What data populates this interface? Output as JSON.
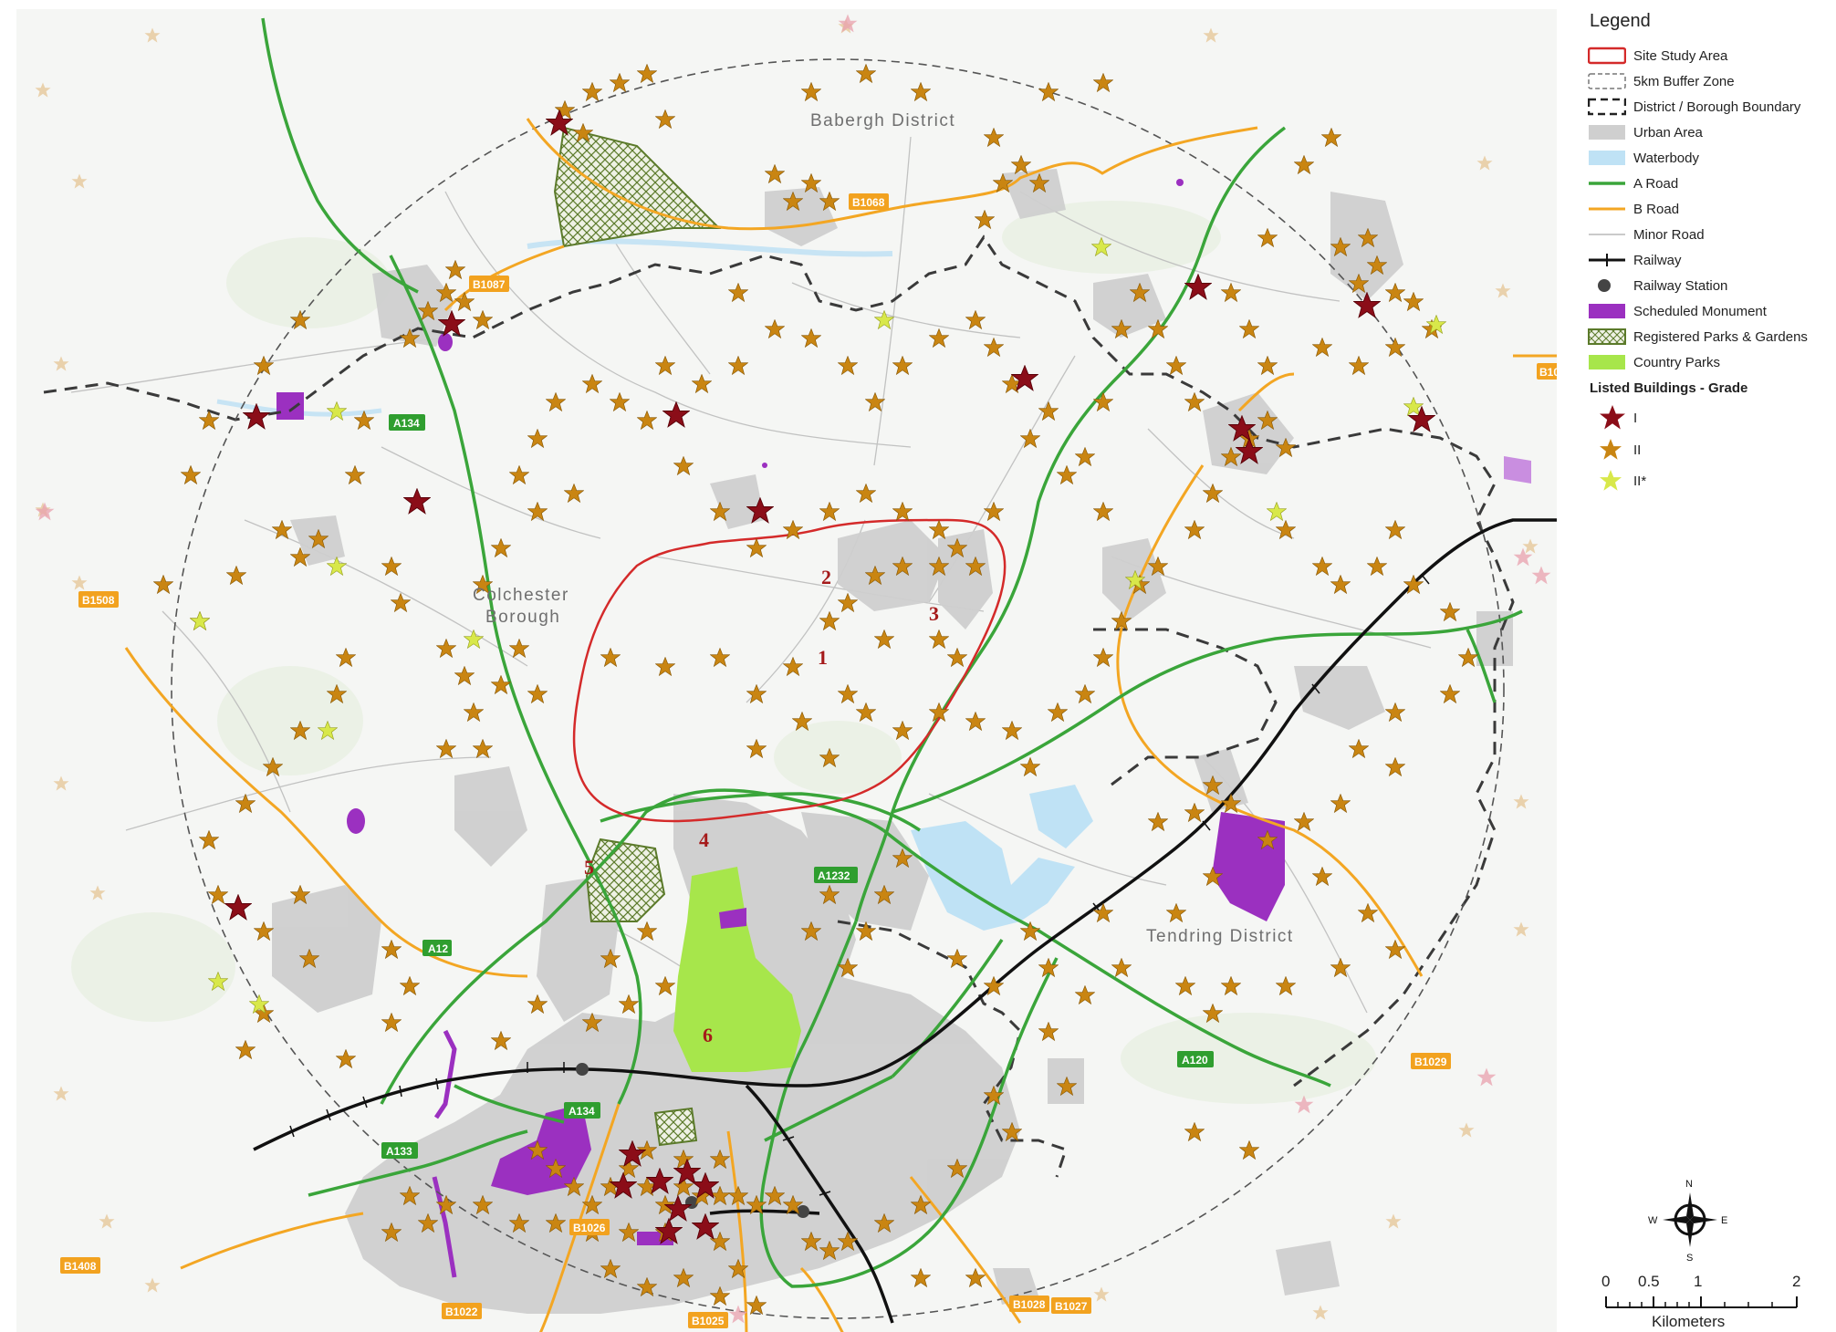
{
  "map": {
    "place_labels": {
      "babergh": "Babergh District",
      "colchester_1": "Colchester",
      "colchester_2": "Borough",
      "tendring": "Tendring District"
    },
    "site_numbers": [
      "1",
      "2",
      "3",
      "4",
      "5",
      "6"
    ],
    "road_labels": {
      "a134_north": "A134",
      "a12": "A12",
      "a1232": "A1232",
      "a134_south": "A134",
      "a133": "A133",
      "a120": "A120",
      "b1068": "B1068",
      "b1087": "B1087",
      "b1508": "B1508",
      "b1029": "B1029",
      "b1026": "B1026",
      "b1408": "B1408",
      "b1022": "B1022",
      "b1025": "B1025",
      "b1028": "B1028",
      "b1027": "B1027",
      "b10_edge": "B10"
    },
    "colors": {
      "a_road": "#3aa53a",
      "b_road": "#f3a623",
      "site_boundary": "#d42a2a",
      "urban": "#c8c8c8",
      "water": "#bfe2f5",
      "scheduled_monument": "#9b30c0",
      "country_park": "#a7e64b",
      "registered_park": "#5b7a2a",
      "star_grade_i": "#8b0d18",
      "star_grade_ii": "#c98512",
      "star_grade_iistar": "#d8e84a"
    }
  },
  "legend": {
    "title": "Legend",
    "items": [
      {
        "key": "site-study-area",
        "label": "Site Study Area"
      },
      {
        "key": "buffer-zone",
        "label": "5km Buffer Zone"
      },
      {
        "key": "district-boundary",
        "label": "District / Borough Boundary"
      },
      {
        "key": "urban-area",
        "label": "Urban Area"
      },
      {
        "key": "waterbody",
        "label": "Waterbody"
      },
      {
        "key": "a-road",
        "label": "A Road"
      },
      {
        "key": "b-road",
        "label": "B Road"
      },
      {
        "key": "minor-road",
        "label": "Minor Road"
      },
      {
        "key": "railway",
        "label": "Railway"
      },
      {
        "key": "railway-station",
        "label": "Railway Station"
      },
      {
        "key": "scheduled-monument",
        "label": "Scheduled Monument"
      },
      {
        "key": "registered-parks",
        "label": "Registered Parks & Gardens"
      },
      {
        "key": "country-parks",
        "label": "Country Parks"
      }
    ],
    "listed_heading": "Listed Buildings - Grade",
    "grades": [
      {
        "key": "grade-i",
        "label": "I"
      },
      {
        "key": "grade-ii",
        "label": "II"
      },
      {
        "key": "grade-iistar",
        "label": "II*"
      }
    ]
  },
  "north_arrow": {
    "n": "N",
    "e": "E",
    "s": "S",
    "w": "W"
  },
  "scale": {
    "ticks": [
      "0",
      "0.5",
      "1",
      "2"
    ],
    "unit": "Kilometers"
  }
}
